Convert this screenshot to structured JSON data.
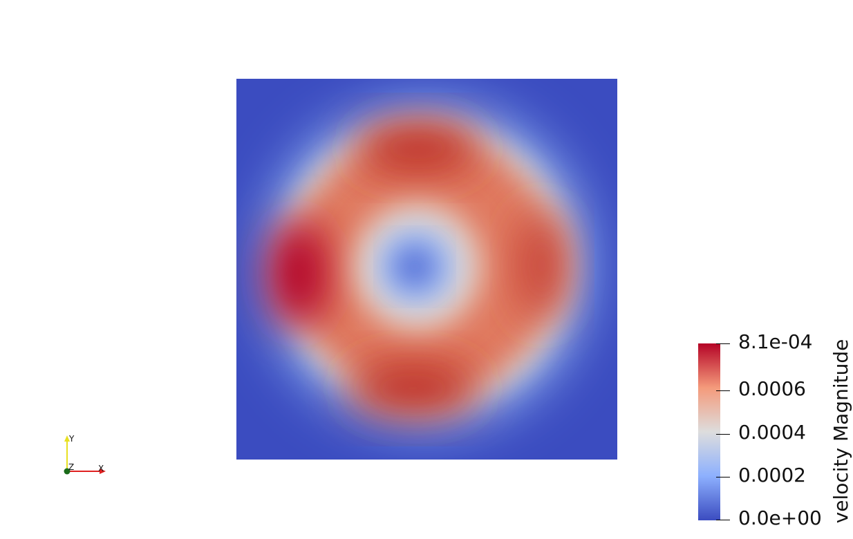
{
  "viewport": {
    "field": "velocity Magnitude",
    "colormap": "Cool to Warm",
    "background": "#ffffff"
  },
  "colorbar": {
    "title": "velocity Magnitude",
    "range": [
      0.0,
      0.00081
    ],
    "ticks": [
      {
        "label": "8.1e-04",
        "value": 0.00081
      },
      {
        "label": "0.0006",
        "value": 0.0006
      },
      {
        "label": "0.0004",
        "value": 0.0004
      },
      {
        "label": "0.0002",
        "value": 0.0002
      },
      {
        "label": "0.0e+00",
        "value": 0.0
      }
    ],
    "colors": {
      "low": "#3b4cc0",
      "mid": "#dddddd",
      "high": "#b40426"
    }
  },
  "orientation_axes": {
    "x_label": "X",
    "y_label": "Y",
    "z_label": "Z",
    "x_color": "#e02020",
    "y_color": "#e8e020",
    "z_color": "#1a6b1a"
  }
}
